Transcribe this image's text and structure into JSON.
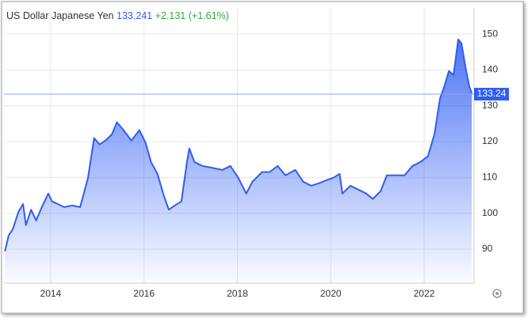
{
  "chart_data": {
    "type": "area",
    "title": "US Dollar Japanese Yen",
    "price": "133.241",
    "change": "+2.131 (+1.61%)",
    "x": [
      2013.02,
      2013.1,
      2013.19,
      2013.31,
      2013.41,
      2013.47,
      2013.58,
      2013.69,
      2013.81,
      2013.95,
      2014.03,
      2014.15,
      2014.29,
      2014.46,
      2014.63,
      2014.71,
      2014.8,
      2014.93,
      2015.05,
      2015.17,
      2015.31,
      2015.42,
      2015.56,
      2015.73,
      2015.9,
      2016.03,
      2016.15,
      2016.29,
      2016.41,
      2016.53,
      2016.66,
      2016.8,
      2016.92,
      2016.97,
      2017.08,
      2017.25,
      2017.42,
      2017.68,
      2017.85,
      2018.02,
      2018.19,
      2018.32,
      2018.53,
      2018.69,
      2018.86,
      2019.03,
      2019.24,
      2019.41,
      2019.58,
      2019.75,
      2019.92,
      2020.05,
      2020.19,
      2020.25,
      2020.42,
      2020.59,
      2020.76,
      2020.9,
      2021.07,
      2021.2,
      2021.37,
      2021.58,
      2021.75,
      2021.92,
      2022.08,
      2022.22,
      2022.34,
      2022.42,
      2022.53,
      2022.63,
      2022.73,
      2022.8,
      2022.9,
      2022.97,
      2023.02
    ],
    "series": [
      {
        "name": "USDJPY",
        "color": "#2f5df5",
        "values": [
          89.4,
          93.8,
          95.6,
          100.4,
          102.6,
          96.7,
          101,
          98,
          101.7,
          105.5,
          103.3,
          102.6,
          101.7,
          102.2,
          101.7,
          105.5,
          109.9,
          121,
          119.2,
          120.3,
          122,
          125.4,
          123.2,
          120.3,
          123.2,
          119.8,
          114.3,
          111,
          105.5,
          101,
          102.2,
          103.3,
          114.3,
          118.1,
          114.3,
          113.2,
          112.8,
          112.1,
          113.2,
          109.9,
          105.5,
          108.8,
          111.5,
          111.5,
          113.2,
          110.6,
          112.1,
          108.8,
          107.7,
          108.4,
          109.3,
          109.9,
          111,
          105.5,
          107.7,
          106.6,
          105.5,
          104,
          106.2,
          110.6,
          110.6,
          110.6,
          113.2,
          114.3,
          115.9,
          122,
          132,
          134.9,
          139.7,
          138.6,
          148.5,
          147.4,
          139.7,
          135.3,
          133.5
        ]
      }
    ],
    "current_price": 133.24,
    "xlim": [
      2013,
      2023.07
    ],
    "xticks": [
      2014,
      2016,
      2018,
      2020,
      2022
    ],
    "ylim": [
      80.5,
      157.3
    ],
    "yticks": [
      90,
      100,
      110,
      120,
      130,
      140,
      150
    ],
    "grid": true
  }
}
